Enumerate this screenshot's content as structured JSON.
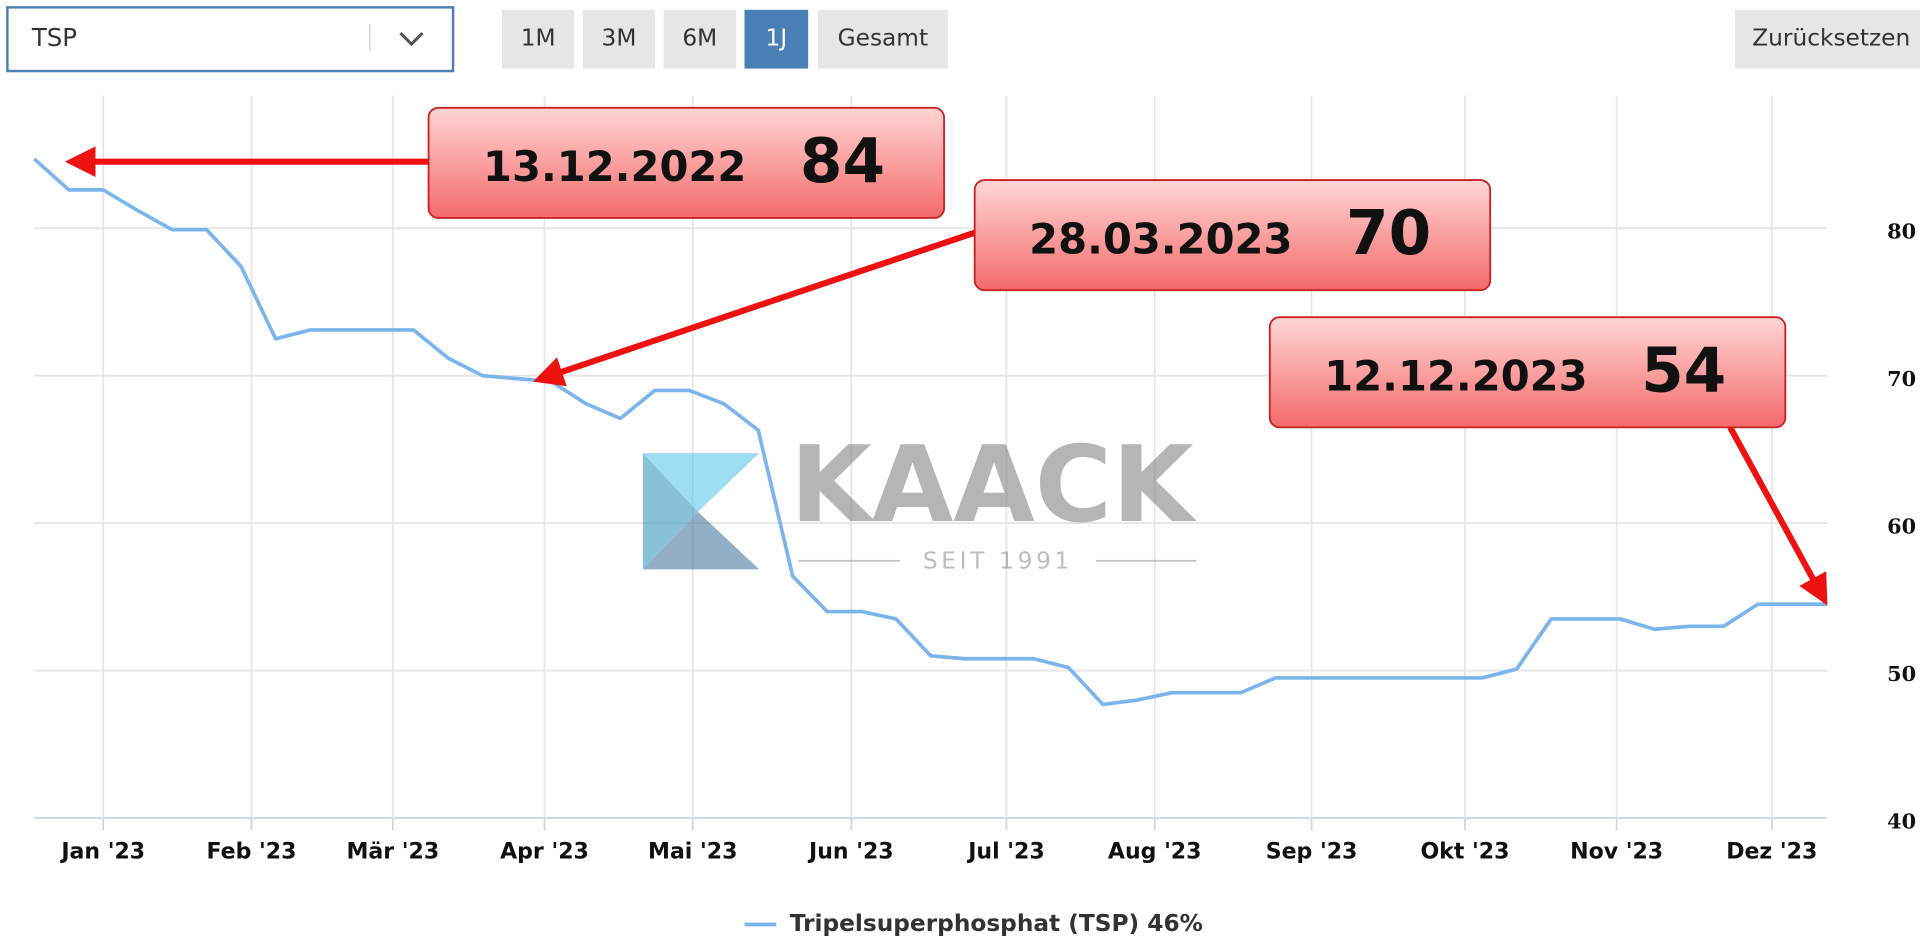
{
  "ui": {
    "select": "TSP",
    "ranges": [
      "1M",
      "3M",
      "6M",
      "1J",
      "Gesamt"
    ],
    "active_range": 3,
    "reset": "Zurücksetzen"
  },
  "watermark": {
    "name": "KAACK",
    "tagline": "SEIT 1991"
  },
  "chart_data": {
    "type": "line",
    "x": [
      0,
      1,
      2,
      3,
      4,
      5,
      6,
      7,
      8,
      9,
      10,
      11,
      12,
      13,
      14,
      15,
      16,
      17,
      18,
      19,
      20,
      21,
      22,
      23,
      24,
      25,
      26,
      27,
      28,
      29,
      30,
      31,
      32,
      33,
      34,
      35,
      36,
      37,
      38,
      39,
      40,
      41,
      42,
      43,
      44,
      45,
      46,
      47,
      48,
      49,
      50,
      51,
      52
    ],
    "series": [
      {
        "name": "Tripelsuperphosphat (TSP) 46%",
        "color": "#7cb5ec",
        "values": [
          84.7,
          82.6,
          82.6,
          81.2,
          79.9,
          79.9,
          77.4,
          72.5,
          73.1,
          73.1,
          73.1,
          73.1,
          71.2,
          70.0,
          69.8,
          69.6,
          68.1,
          67.1,
          69.0,
          69.0,
          68.1,
          66.3,
          56.4,
          54.0,
          54.0,
          53.5,
          51.0,
          50.8,
          50.8,
          50.8,
          50.2,
          47.7,
          48.0,
          48.5,
          48.5,
          48.5,
          49.5,
          49.5,
          49.5,
          49.5,
          49.5,
          49.5,
          49.5,
          50.1,
          53.5,
          53.5,
          53.5,
          52.8,
          53.0,
          53.0,
          54.5,
          54.5,
          54.5
        ]
      }
    ],
    "xlim": [
      0,
      52
    ],
    "xticks": [
      {
        "value": 2.0,
        "label": "Jan '23"
      },
      {
        "value": 6.3,
        "label": "Feb '23"
      },
      {
        "value": 10.4,
        "label": "Mär '23"
      },
      {
        "value": 14.8,
        "label": "Apr '23"
      },
      {
        "value": 19.1,
        "label": "Mai '23"
      },
      {
        "value": 23.7,
        "label": "Jun '23"
      },
      {
        "value": 28.2,
        "label": "Jul '23"
      },
      {
        "value": 32.5,
        "label": "Aug '23"
      },
      {
        "value": 37.05,
        "label": "Sep '23"
      },
      {
        "value": 41.5,
        "label": "Okt '23"
      },
      {
        "value": 45.9,
        "label": "Nov '23"
      },
      {
        "value": 50.4,
        "label": "Dez '23"
      }
    ],
    "ylim": [
      40,
      89
    ],
    "yticks": [
      40,
      50,
      60,
      70,
      80
    ],
    "grid": true,
    "annotations": [
      {
        "date": "13.12.2022",
        "value": 84
      },
      {
        "date": "28.03.2023",
        "value": 70
      },
      {
        "date": "12.12.2023",
        "value": 54
      }
    ]
  }
}
